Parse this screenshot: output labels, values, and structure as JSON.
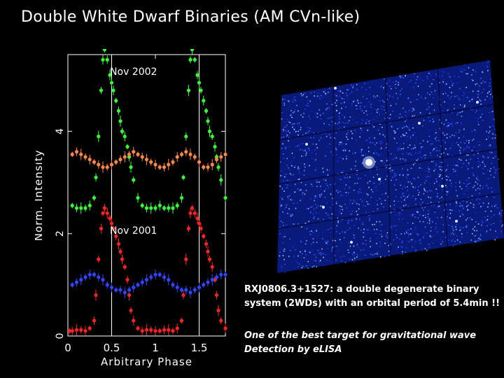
{
  "title": "Double White Dwarf Binaries (AM CVn-like)",
  "captions": {
    "object": "RXJ0806.3+1527: a double degenerate binary system (2WDs) with an orbital period of 5.4min !!",
    "note": "One of the best target for gravitational wave Detection by eLISA"
  },
  "chart_data": {
    "type": "scatter",
    "xlabel": "Arbitrary Phase",
    "ylabel": "Norm. Intensity",
    "xlim": [
      0,
      1.8
    ],
    "ylim": [
      0,
      5.5
    ],
    "x_ticks": [
      "0",
      "0.5",
      "1",
      "1.5"
    ],
    "y_ticks": [
      "0",
      "2",
      "4"
    ],
    "vlines": [
      0.5,
      1.5
    ],
    "annotations": [
      {
        "text": "Nov 2002",
        "x": 0.75,
        "y": 5.1
      },
      {
        "text": "Nov 2001",
        "x": 0.75,
        "y": 2.0
      }
    ],
    "series": [
      {
        "color": "#33ff33",
        "group": "Nov 2002",
        "x": [
          0.05,
          0.1,
          0.15,
          0.2,
          0.25,
          0.3,
          0.32,
          0.35,
          0.38,
          0.4,
          0.42,
          0.45,
          0.48,
          0.5,
          0.52,
          0.55,
          0.58,
          0.6,
          0.62,
          0.65,
          0.68,
          0.7,
          0.72,
          0.75,
          0.8,
          0.85,
          0.9,
          0.95,
          1.0,
          1.05,
          1.1,
          1.15,
          1.2,
          1.25,
          1.3,
          1.32,
          1.35,
          1.38,
          1.4,
          1.42,
          1.45,
          1.48,
          1.5,
          1.52,
          1.55,
          1.58,
          1.6,
          1.62,
          1.65,
          1.68,
          1.7,
          1.72,
          1.75,
          1.8
        ],
        "y": [
          2.55,
          2.5,
          2.5,
          2.5,
          2.55,
          2.7,
          3.1,
          3.9,
          4.8,
          5.4,
          5.6,
          5.4,
          5.1,
          4.95,
          4.8,
          4.6,
          4.4,
          4.2,
          4.0,
          3.9,
          3.7,
          3.5,
          3.3,
          3.05,
          2.7,
          2.55,
          2.5,
          2.5,
          2.5,
          2.55,
          2.5,
          2.5,
          2.5,
          2.55,
          2.7,
          3.1,
          3.9,
          4.8,
          5.4,
          5.6,
          5.4,
          5.1,
          4.95,
          4.8,
          4.6,
          4.4,
          4.2,
          4.0,
          3.9,
          3.7,
          3.5,
          3.3,
          3.05,
          2.7
        ]
      },
      {
        "color": "#ff8844",
        "group": "Nov 2002",
        "x": [
          0.05,
          0.1,
          0.15,
          0.2,
          0.25,
          0.3,
          0.35,
          0.4,
          0.45,
          0.5,
          0.55,
          0.6,
          0.65,
          0.7,
          0.75,
          0.8,
          0.85,
          0.9,
          0.95,
          1.0,
          1.05,
          1.1,
          1.15,
          1.2,
          1.25,
          1.3,
          1.35,
          1.4,
          1.45,
          1.5,
          1.55,
          1.6,
          1.65,
          1.7,
          1.75,
          1.8
        ],
        "y": [
          3.55,
          3.6,
          3.55,
          3.5,
          3.45,
          3.4,
          3.35,
          3.3,
          3.3,
          3.35,
          3.4,
          3.45,
          3.5,
          3.55,
          3.6,
          3.55,
          3.5,
          3.45,
          3.4,
          3.35,
          3.3,
          3.3,
          3.35,
          3.4,
          3.5,
          3.55,
          3.6,
          3.55,
          3.5,
          3.4,
          3.3,
          3.3,
          3.35,
          3.45,
          3.5,
          3.55
        ]
      },
      {
        "color": "#ff2222",
        "group": "Nov 2001",
        "x": [
          0.02,
          0.05,
          0.1,
          0.15,
          0.2,
          0.25,
          0.3,
          0.32,
          0.35,
          0.38,
          0.4,
          0.42,
          0.45,
          0.48,
          0.5,
          0.52,
          0.55,
          0.58,
          0.6,
          0.62,
          0.65,
          0.68,
          0.7,
          0.72,
          0.75,
          0.8,
          0.85,
          0.9,
          0.95,
          1.0,
          1.05,
          1.1,
          1.15,
          1.2,
          1.25,
          1.3,
          1.32,
          1.35,
          1.38,
          1.4,
          1.42,
          1.45,
          1.48,
          1.5,
          1.52,
          1.55,
          1.58,
          1.6,
          1.62,
          1.65,
          1.68,
          1.7,
          1.72,
          1.75,
          1.8
        ],
        "y": [
          0.1,
          0.1,
          0.12,
          0.12,
          0.1,
          0.15,
          0.3,
          0.8,
          1.5,
          2.1,
          2.4,
          2.5,
          2.4,
          2.3,
          2.2,
          2.1,
          1.95,
          1.8,
          1.65,
          1.5,
          1.35,
          1.1,
          0.8,
          0.5,
          0.3,
          0.15,
          0.1,
          0.12,
          0.12,
          0.1,
          0.1,
          0.12,
          0.12,
          0.1,
          0.15,
          0.3,
          0.8,
          1.5,
          2.1,
          2.4,
          2.5,
          2.4,
          2.3,
          2.2,
          2.1,
          1.95,
          1.8,
          1.65,
          1.5,
          1.35,
          1.1,
          0.8,
          0.5,
          0.3,
          0.15
        ]
      },
      {
        "color": "#3344ff",
        "group": "Nov 2001",
        "x": [
          0.05,
          0.1,
          0.15,
          0.2,
          0.25,
          0.3,
          0.35,
          0.4,
          0.45,
          0.5,
          0.55,
          0.6,
          0.65,
          0.7,
          0.75,
          0.8,
          0.85,
          0.9,
          0.95,
          1.0,
          1.05,
          1.1,
          1.15,
          1.2,
          1.25,
          1.3,
          1.35,
          1.4,
          1.45,
          1.5,
          1.55,
          1.6,
          1.65,
          1.7,
          1.75,
          1.8
        ],
        "y": [
          1.0,
          1.05,
          1.1,
          1.15,
          1.2,
          1.2,
          1.15,
          1.1,
          1.0,
          0.95,
          0.9,
          0.9,
          0.85,
          0.9,
          0.95,
          1.0,
          1.05,
          1.1,
          1.15,
          1.2,
          1.2,
          1.15,
          1.1,
          1.0,
          0.95,
          0.9,
          0.9,
          0.85,
          0.9,
          0.95,
          1.0,
          1.05,
          1.1,
          1.15,
          1.2,
          1.2
        ]
      }
    ]
  }
}
